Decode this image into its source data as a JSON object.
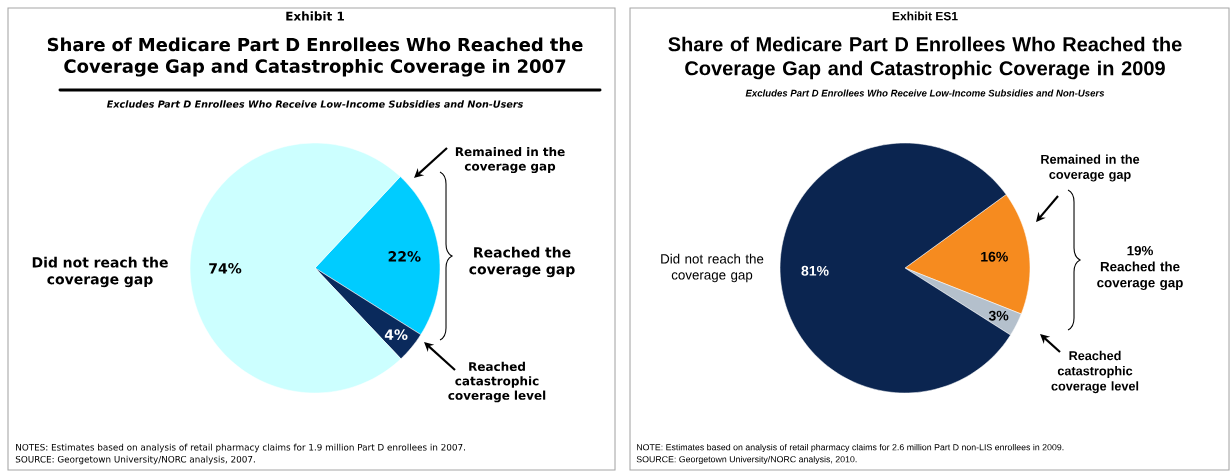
{
  "chart_data": [
    {
      "type": "pie",
      "title": "Share of Medicare Part D Enrollees Who Reached the Coverage Gap and Catastrophic Coverage in 2007",
      "subtitle": "Excludes Part D Enrollees Who Receive Low-Income Subsidies and Non-Users",
      "categories": [
        "Did not reach the coverage gap",
        "Remained in the coverage gap",
        "Reached catastrophic coverage level"
      ],
      "values": [
        74,
        22,
        4
      ],
      "value_labels": [
        "74%",
        "22%",
        "4%"
      ],
      "colors": [
        "#ccffff",
        "#00ccff",
        "#0a2a5c"
      ],
      "annotations": [
        "Exhibit 1",
        "Reached the coverage gap",
        "NOTES: Estimates based on analysis of retail pharmacy claims for 1.9 million Part D enrollees in 2007.",
        "SOURCE: Georgetown University/NORC analysis, 2007."
      ]
    },
    {
      "type": "pie",
      "title": "Share of Medicare Part D Enrollees Who Reached the Coverage Gap and Catastrophic Coverage in 2009",
      "subtitle": "Excludes Part D Enrollees Who Receive Low-Income Subsidies and Non-Users",
      "categories": [
        "Did not reach the coverage gap",
        "Remained in the coverage gap",
        "Reached catastrophic coverage level"
      ],
      "values": [
        81,
        16,
        3
      ],
      "value_labels": [
        "81%",
        "16%",
        "3%"
      ],
      "colors": [
        "#0b2550",
        "#f68b1f",
        "#b4c0cc"
      ],
      "annotations": [
        "Exhibit ES1",
        "19% Reached the coverage gap",
        "NOTE: Estimates based on analysis of retail pharmacy claims for 2.6 million Part D non-LIS enrollees in 2009.",
        "SOURCE: Georgetown University/NORC analysis, 2010."
      ]
    }
  ]
}
